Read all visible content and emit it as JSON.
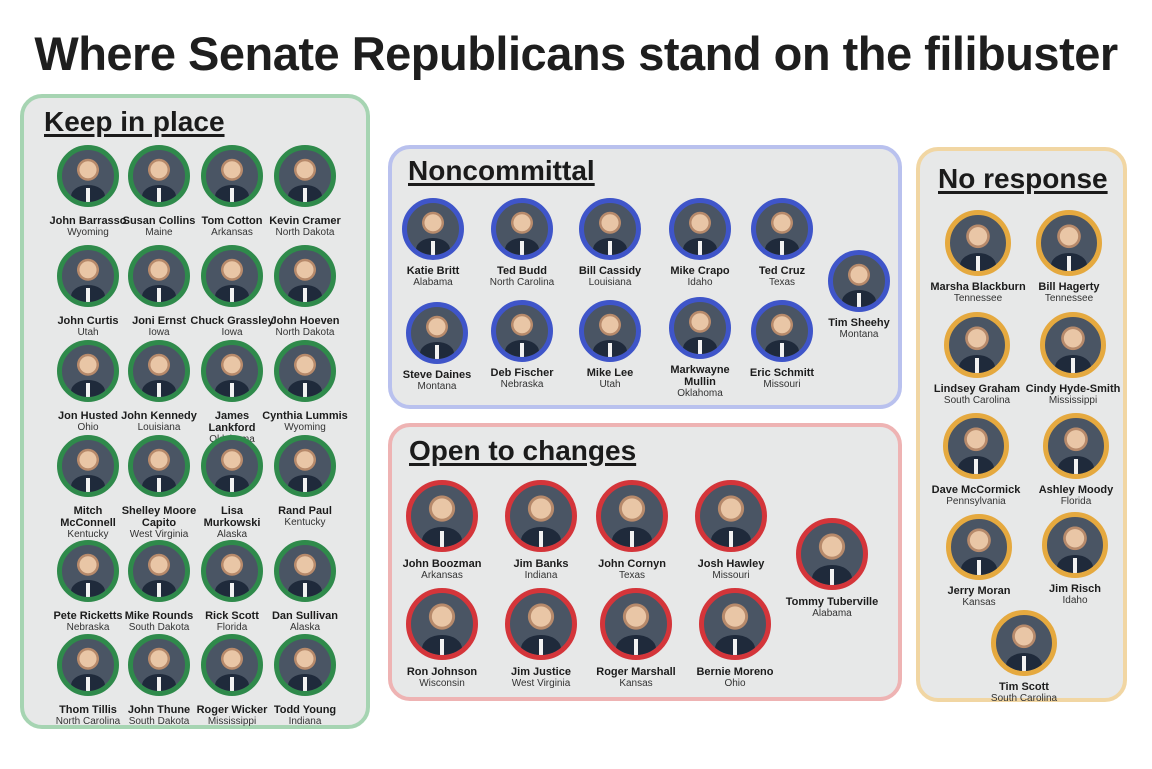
{
  "title": "Where Senate Republicans stand on the filibuster",
  "colors": {
    "keep": "#2f8a4b",
    "noncommittal": "#3f55c9",
    "open": "#d4353a",
    "no_response": "#e5a93f",
    "panel_bg": "#e7e8e8"
  },
  "keep": {
    "heading": "Keep in place",
    "senators": [
      {
        "name": "John Barrasso",
        "state": "Wyoming"
      },
      {
        "name": "Susan Collins",
        "state": "Maine"
      },
      {
        "name": "Tom Cotton",
        "state": "Arkansas"
      },
      {
        "name": "Kevin Cramer",
        "state": "North Dakota"
      },
      {
        "name": "John Curtis",
        "state": "Utah"
      },
      {
        "name": "Joni Ernst",
        "state": "Iowa"
      },
      {
        "name": "Chuck Grassley",
        "state": "Iowa"
      },
      {
        "name": "John Hoeven",
        "state": "North Dakota"
      },
      {
        "name": "Jon Husted",
        "state": "Ohio"
      },
      {
        "name": "John Kennedy",
        "state": "Louisiana"
      },
      {
        "name": "James Lankford",
        "state": "Oklahoma"
      },
      {
        "name": "Cynthia Lummis",
        "state": "Wyoming"
      },
      {
        "name": "Mitch McConnell",
        "state": "Kentucky"
      },
      {
        "name": "Shelley Moore Capito",
        "state": "West Virginia"
      },
      {
        "name": "Lisa Murkowski",
        "state": "Alaska"
      },
      {
        "name": "Rand Paul",
        "state": "Kentucky"
      },
      {
        "name": "Pete Ricketts",
        "state": "Nebraska"
      },
      {
        "name": "Mike Rounds",
        "state": "South Dakota"
      },
      {
        "name": "Rick Scott",
        "state": "Florida"
      },
      {
        "name": "Dan Sullivan",
        "state": "Alaska"
      },
      {
        "name": "Thom Tillis",
        "state": "North Carolina"
      },
      {
        "name": "John Thune",
        "state": "South Dakota"
      },
      {
        "name": "Roger Wicker",
        "state": "Mississippi"
      },
      {
        "name": "Todd Young",
        "state": "Indiana"
      }
    ]
  },
  "noncommittal": {
    "heading": "Noncommittal",
    "senators": [
      {
        "name": "Katie Britt",
        "state": "Alabama"
      },
      {
        "name": "Ted Budd",
        "state": "North Carolina"
      },
      {
        "name": "Bill Cassidy",
        "state": "Louisiana"
      },
      {
        "name": "Mike Crapo",
        "state": "Idaho"
      },
      {
        "name": "Ted Cruz",
        "state": "Texas"
      },
      {
        "name": "Tim Sheehy",
        "state": "Montana"
      },
      {
        "name": "Steve Daines",
        "state": "Montana"
      },
      {
        "name": "Deb Fischer",
        "state": "Nebraska"
      },
      {
        "name": "Mike Lee",
        "state": "Utah"
      },
      {
        "name": "Markwayne Mullin",
        "state": "Oklahoma"
      },
      {
        "name": "Eric Schmitt",
        "state": "Missouri"
      }
    ]
  },
  "open": {
    "heading": "Open to changes",
    "senators": [
      {
        "name": "John Boozman",
        "state": "Arkansas"
      },
      {
        "name": "Jim Banks",
        "state": "Indiana"
      },
      {
        "name": "John Cornyn",
        "state": "Texas"
      },
      {
        "name": "Josh Hawley",
        "state": "Missouri"
      },
      {
        "name": "Tommy Tuberville",
        "state": "Alabama"
      },
      {
        "name": "Ron Johnson",
        "state": "Wisconsin"
      },
      {
        "name": "Jim Justice",
        "state": "West Virginia"
      },
      {
        "name": "Roger Marshall",
        "state": "Kansas"
      },
      {
        "name": "Bernie Moreno",
        "state": "Ohio"
      }
    ]
  },
  "no_response": {
    "heading": "No response",
    "senators": [
      {
        "name": "Marsha Blackburn",
        "state": "Tennessee"
      },
      {
        "name": "Bill Hagerty",
        "state": "Tennessee"
      },
      {
        "name": "Lindsey Graham",
        "state": "South Carolina"
      },
      {
        "name": "Cindy Hyde-Smith",
        "state": "Mississippi"
      },
      {
        "name": "Dave McCormick",
        "state": "Pennsylvania"
      },
      {
        "name": "Ashley Moody",
        "state": "Florida"
      },
      {
        "name": "Jerry Moran",
        "state": "Kansas"
      },
      {
        "name": "Jim Risch",
        "state": "Idaho"
      },
      {
        "name": "Tim Scott",
        "state": "South Carolina"
      }
    ]
  }
}
